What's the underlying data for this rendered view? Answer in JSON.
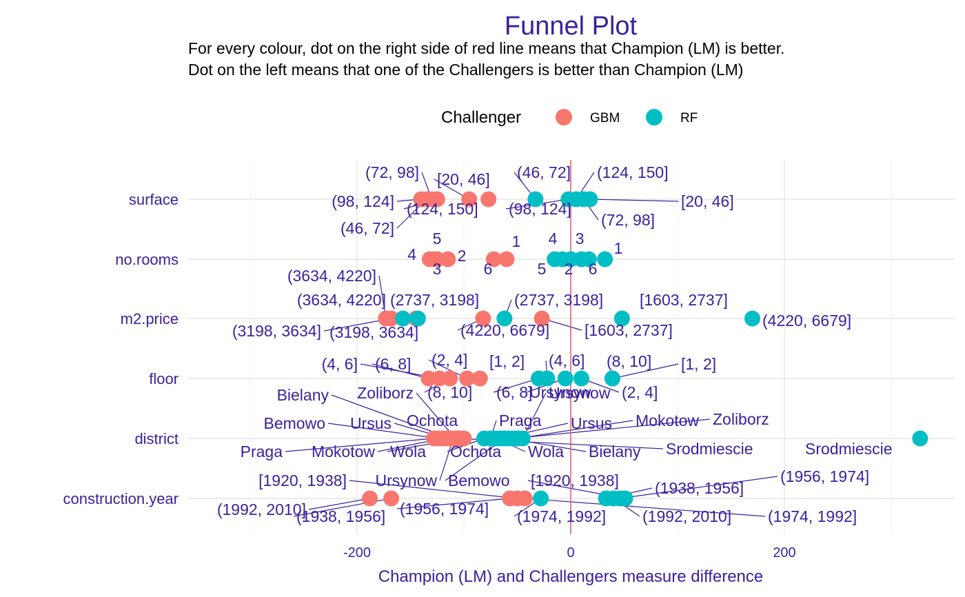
{
  "chart_data": {
    "type": "scatter",
    "title": "Funnel Plot",
    "subtitle_lines": [
      "For every colour, dot on the right side of red line means that Champion (LM) is better.",
      "Dot on the left means that one of the Challengers is better than Champion (LM)"
    ],
    "xlabel": "Champion (LM) and Challengers measure difference",
    "ylabel": "",
    "xlim": [
      -350,
      350
    ],
    "x_ticks": [
      -200,
      0,
      200
    ],
    "x_tick_labels": [
      "-200",
      "0",
      "200"
    ],
    "reference_line_x": 0,
    "categories": [
      "surface",
      "no.rooms",
      "m2.price",
      "floor",
      "district",
      "construction.year"
    ],
    "grid": true,
    "legend": {
      "title": "Challenger",
      "position": "top",
      "items": [
        {
          "name": "GBM",
          "color": "#F8766D"
        },
        {
          "name": "RF",
          "color": "#00BFC4"
        }
      ]
    },
    "colors": {
      "GBM": "#F8766D",
      "RF": "#00BFC4",
      "ref_line": "#E0607A",
      "label": "#3a1f9e"
    },
    "series": [
      {
        "name": "GBM",
        "points": [
          {
            "category": "surface",
            "x": -140,
            "label": "(98, 124]"
          },
          {
            "category": "surface",
            "x": -135,
            "label": "(46, 72]"
          },
          {
            "category": "surface",
            "x": -130,
            "label": "(72, 98]"
          },
          {
            "category": "surface",
            "x": -125,
            "label": "(124, 150]"
          },
          {
            "category": "surface",
            "x": -95,
            "label": "[20, 46]"
          },
          {
            "category": "surface",
            "x": -77,
            "label": ""
          },
          {
            "category": "no.rooms",
            "x": -132,
            "label": "4"
          },
          {
            "category": "no.rooms",
            "x": -128,
            "label": "3"
          },
          {
            "category": "no.rooms",
            "x": -115,
            "label": "2"
          },
          {
            "category": "no.rooms",
            "x": -125,
            "label": "5"
          },
          {
            "category": "no.rooms",
            "x": -72,
            "label": "6"
          },
          {
            "category": "no.rooms",
            "x": -60,
            "label": "1"
          },
          {
            "category": "m2.price",
            "x": -173,
            "label": "(3634, 4220]"
          },
          {
            "category": "m2.price",
            "x": -168,
            "label": "(3198, 3634]"
          },
          {
            "category": "m2.price",
            "x": -145,
            "label": "(2737, 3198]"
          },
          {
            "category": "m2.price",
            "x": -82,
            "label": "(4220, 6679]"
          },
          {
            "category": "m2.price",
            "x": -27,
            "label": "[1603, 2737]"
          },
          {
            "category": "floor",
            "x": -133,
            "label": "(6, 8]"
          },
          {
            "category": "floor",
            "x": -123,
            "label": "(4, 6]"
          },
          {
            "category": "floor",
            "x": -113,
            "label": "(8, 10]"
          },
          {
            "category": "floor",
            "x": -97,
            "label": "(2, 4]"
          },
          {
            "category": "floor",
            "x": -85,
            "label": "[1, 2]"
          },
          {
            "category": "district",
            "x": -128,
            "label": "Praga"
          },
          {
            "category": "district",
            "x": -124,
            "label": "Bemowo"
          },
          {
            "category": "district",
            "x": -120,
            "label": "Mokotow"
          },
          {
            "category": "district",
            "x": -116,
            "label": "Ursus"
          },
          {
            "category": "district",
            "x": -112,
            "label": "Bielany"
          },
          {
            "category": "district",
            "x": -108,
            "label": "Zoliborz"
          },
          {
            "category": "district",
            "x": -104,
            "label": "Wola"
          },
          {
            "category": "district",
            "x": -100,
            "label": "Ochota"
          },
          {
            "category": "district",
            "x": -110,
            "label": "Ursynow"
          },
          {
            "category": "district",
            "x": -106,
            "label": "Srodmiescie"
          },
          {
            "category": "construction.year",
            "x": -188,
            "label": "(1992, 2010]"
          },
          {
            "category": "construction.year",
            "x": -168,
            "label": "(1938, 1956]"
          },
          {
            "category": "construction.year",
            "x": -57,
            "label": "(1956, 1974]"
          },
          {
            "category": "construction.year",
            "x": -50,
            "label": "[1920, 1938]"
          },
          {
            "category": "construction.year",
            "x": -43,
            "label": "(1974, 1992]"
          }
        ]
      },
      {
        "name": "RF",
        "points": [
          {
            "category": "surface",
            "x": -33,
            "label": "(46, 72]"
          },
          {
            "category": "surface",
            "x": -2,
            "label": "(98, 124]"
          },
          {
            "category": "surface",
            "x": 5,
            "label": "(124, 150]"
          },
          {
            "category": "surface",
            "x": 12,
            "label": "(72, 98]"
          },
          {
            "category": "surface",
            "x": 18,
            "label": "[20, 46]"
          },
          {
            "category": "no.rooms",
            "x": -15,
            "label": "5"
          },
          {
            "category": "no.rooms",
            "x": -8,
            "label": "4"
          },
          {
            "category": "no.rooms",
            "x": 0,
            "label": "2"
          },
          {
            "category": "no.rooms",
            "x": 10,
            "label": "3"
          },
          {
            "category": "no.rooms",
            "x": 17,
            "label": "6"
          },
          {
            "category": "no.rooms",
            "x": 32,
            "label": "1"
          },
          {
            "category": "m2.price",
            "x": -157,
            "label": "(3634, 4220]"
          },
          {
            "category": "m2.price",
            "x": -143,
            "label": "(3198, 3634]"
          },
          {
            "category": "m2.price",
            "x": -62,
            "label": "(2737, 3198]"
          },
          {
            "category": "m2.price",
            "x": 48,
            "label": "[1603, 2737]"
          },
          {
            "category": "m2.price",
            "x": 170,
            "label": "(4220, 6679]"
          },
          {
            "category": "floor",
            "x": -30,
            "label": "(6, 8]"
          },
          {
            "category": "floor",
            "x": -22,
            "label": "(4, 6]"
          },
          {
            "category": "floor",
            "x": -5,
            "label": "Ursynow"
          },
          {
            "category": "floor",
            "x": 10,
            "label": "(2, 4]"
          },
          {
            "category": "floor",
            "x": 39,
            "label": "(8, 10]"
          },
          {
            "category": "floor",
            "x": 39,
            "label": "[1, 2]"
          },
          {
            "category": "district",
            "x": -81,
            "label": "Ochota"
          },
          {
            "category": "district",
            "x": -75,
            "label": "Praga"
          },
          {
            "category": "district",
            "x": -70,
            "label": "Wola"
          },
          {
            "category": "district",
            "x": -66,
            "label": "Ursus"
          },
          {
            "category": "district",
            "x": -62,
            "label": "Bemowo"
          },
          {
            "category": "district",
            "x": -58,
            "label": "Bielany"
          },
          {
            "category": "district",
            "x": -54,
            "label": "Zoliborz"
          },
          {
            "category": "district",
            "x": -50,
            "label": "Mokotow"
          },
          {
            "category": "district",
            "x": -45,
            "label": "Ursynow"
          },
          {
            "category": "district",
            "x": 327,
            "label": "Srodmiescie"
          },
          {
            "category": "construction.year",
            "x": -28,
            "label": "(1974, 1992]"
          },
          {
            "category": "construction.year",
            "x": 33,
            "label": "(1938, 1956]"
          },
          {
            "category": "construction.year",
            "x": 40,
            "label": "(1992, 2010]"
          },
          {
            "category": "construction.year",
            "x": 46,
            "label": "(1956, 1974]"
          },
          {
            "category": "construction.year",
            "x": 51,
            "label": "[1920, 1938]"
          }
        ]
      }
    ]
  }
}
